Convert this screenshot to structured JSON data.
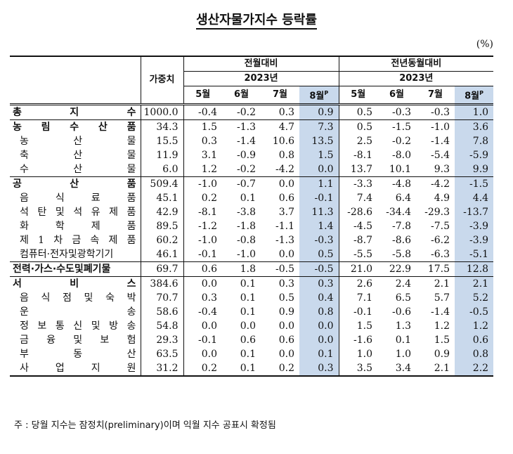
{
  "title": "생산자물가지수 등락률",
  "unit": "(%)",
  "header": {
    "weight": "가중치",
    "mom_group": "전월대비",
    "yoy_group": "전년동월대비",
    "year": "2023년",
    "months": [
      "5월",
      "6월",
      "7월",
      "8월"
    ],
    "prelim_mark": "P"
  },
  "rows": [
    {
      "name": "총지수",
      "chars": [
        "총",
        "지",
        "수"
      ],
      "level": 1,
      "weight": "1000.0",
      "mom": [
        "-0.4",
        "-0.2",
        "0.3",
        "0.9"
      ],
      "yoy": [
        "0.5",
        "-0.3",
        "-0.3",
        "1.0"
      ]
    },
    {
      "name": "농림수산품",
      "chars": [
        "농",
        "림",
        "수",
        "산",
        "품"
      ],
      "level": 1,
      "weight": "34.3",
      "mom": [
        "1.5",
        "-1.3",
        "4.7",
        "7.3"
      ],
      "yoy": [
        "0.5",
        "-1.5",
        "-1.0",
        "3.6"
      ]
    },
    {
      "name": "농산물",
      "chars": [
        "농",
        "산",
        "물"
      ],
      "level": 2,
      "weight": "15.5",
      "mom": [
        "0.3",
        "-1.4",
        "10.6",
        "13.5"
      ],
      "yoy": [
        "2.5",
        "-0.2",
        "-1.4",
        "7.8"
      ]
    },
    {
      "name": "축산물",
      "chars": [
        "축",
        "산",
        "물"
      ],
      "level": 2,
      "weight": "11.9",
      "mom": [
        "3.1",
        "-0.9",
        "0.8",
        "1.5"
      ],
      "yoy": [
        "-8.1",
        "-8.0",
        "-5.4",
        "-5.9"
      ]
    },
    {
      "name": "수산물",
      "chars": [
        "수",
        "산",
        "물"
      ],
      "level": 2,
      "weight": "6.0",
      "mom": [
        "1.2",
        "-0.2",
        "-4.2",
        "0.0"
      ],
      "yoy": [
        "13.7",
        "10.1",
        "9.3",
        "9.9"
      ]
    },
    {
      "name": "공산품",
      "chars": [
        "공",
        "산",
        "품"
      ],
      "level": 1,
      "weight": "509.4",
      "mom": [
        "-1.0",
        "-0.7",
        "0.0",
        "1.1"
      ],
      "yoy": [
        "-3.3",
        "-4.8",
        "-4.2",
        "-1.5"
      ]
    },
    {
      "name": "음식료품",
      "chars": [
        "음",
        "식",
        "료",
        "품"
      ],
      "level": 2,
      "weight": "45.1",
      "mom": [
        "0.2",
        "0.1",
        "0.6",
        "-0.1"
      ],
      "yoy": [
        "7.4",
        "6.4",
        "4.9",
        "4.4"
      ]
    },
    {
      "name": "석탄및석유제품",
      "chars": [
        "석",
        "탄",
        "및",
        "석",
        "유",
        "제",
        "품"
      ],
      "level": 2,
      "weight": "42.9",
      "mom": [
        "-8.1",
        "-3.8",
        "3.7",
        "11.3"
      ],
      "yoy": [
        "-28.6",
        "-34.4",
        "-29.3",
        "-13.7"
      ]
    },
    {
      "name": "화학제품",
      "chars": [
        "화",
        "학",
        "제",
        "품"
      ],
      "level": 2,
      "weight": "89.5",
      "mom": [
        "-1.2",
        "-1.8",
        "-1.1",
        "1.4"
      ],
      "yoy": [
        "-4.5",
        "-7.8",
        "-7.5",
        "-3.9"
      ]
    },
    {
      "name": "제1차금속제품",
      "chars": [
        "제",
        "1",
        "차",
        "금",
        "속",
        "제",
        "품"
      ],
      "level": 2,
      "weight": "60.2",
      "mom": [
        "-1.0",
        "-0.8",
        "-1.3",
        "-0.3"
      ],
      "yoy": [
        "-8.7",
        "-8.6",
        "-6.2",
        "-3.9"
      ]
    },
    {
      "name": "컴퓨터·전자및광학기기",
      "chars": [
        "컴퓨터·전자및광학기기"
      ],
      "level": 2,
      "weight": "46.1",
      "mom": [
        "-0.1",
        "-1.0",
        "0.0",
        "0.5"
      ],
      "yoy": [
        "-5.5",
        "-5.8",
        "-6.3",
        "-5.1"
      ]
    },
    {
      "name": "전력·가스·수도및폐기물",
      "chars": [
        "전력·가스·수도및폐기물"
      ],
      "level": 1,
      "weight": "69.7",
      "mom": [
        "0.6",
        "1.8",
        "-0.5",
        "-0.5"
      ],
      "yoy": [
        "21.0",
        "22.9",
        "17.5",
        "12.8"
      ]
    },
    {
      "name": "서비스",
      "chars": [
        "서",
        "비",
        "스"
      ],
      "level": 1,
      "weight": "384.6",
      "mom": [
        "0.0",
        "0.1",
        "0.3",
        "0.3"
      ],
      "yoy": [
        "2.6",
        "2.4",
        "2.1",
        "2.1"
      ]
    },
    {
      "name": "음식점및숙박",
      "chars": [
        "음",
        "식",
        "점",
        "및",
        "숙",
        "박"
      ],
      "level": 2,
      "weight": "70.7",
      "mom": [
        "0.3",
        "0.1",
        "0.5",
        "0.4"
      ],
      "yoy": [
        "7.1",
        "6.5",
        "5.7",
        "5.2"
      ]
    },
    {
      "name": "운송",
      "chars": [
        "운",
        "송"
      ],
      "level": 2,
      "weight": "58.6",
      "mom": [
        "-0.4",
        "0.1",
        "0.9",
        "0.8"
      ],
      "yoy": [
        "-0.1",
        "-0.6",
        "-1.4",
        "-0.5"
      ]
    },
    {
      "name": "정보통신및방송",
      "chars": [
        "정",
        "보",
        "통",
        "신",
        "및",
        "방",
        "송"
      ],
      "level": 2,
      "weight": "54.8",
      "mom": [
        "0.0",
        "0.0",
        "0.0",
        "0.0"
      ],
      "yoy": [
        "1.5",
        "1.3",
        "1.2",
        "1.2"
      ]
    },
    {
      "name": "금융및보험",
      "chars": [
        "금",
        "융",
        "및",
        "보",
        "험"
      ],
      "level": 2,
      "weight": "29.3",
      "mom": [
        "-0.1",
        "0.6",
        "0.6",
        "0.0"
      ],
      "yoy": [
        "-1.6",
        "0.1",
        "1.5",
        "0.6"
      ]
    },
    {
      "name": "부동산",
      "chars": [
        "부",
        "동",
        "산"
      ],
      "level": 2,
      "weight": "63.5",
      "mom": [
        "0.0",
        "0.1",
        "0.0",
        "0.1"
      ],
      "yoy": [
        "1.0",
        "1.0",
        "0.9",
        "0.8"
      ]
    },
    {
      "name": "사업지원",
      "chars": [
        "사",
        "업",
        "지",
        "원"
      ],
      "level": 2,
      "weight": "31.2",
      "mom": [
        "0.2",
        "0.1",
        "0.2",
        "0.3"
      ],
      "yoy": [
        "3.5",
        "3.4",
        "2.1",
        "2.2"
      ]
    }
  ],
  "note": "주 : 당월 지수는 잠정치(preliminary)이며 익월 지수 공표시 확정됨"
}
